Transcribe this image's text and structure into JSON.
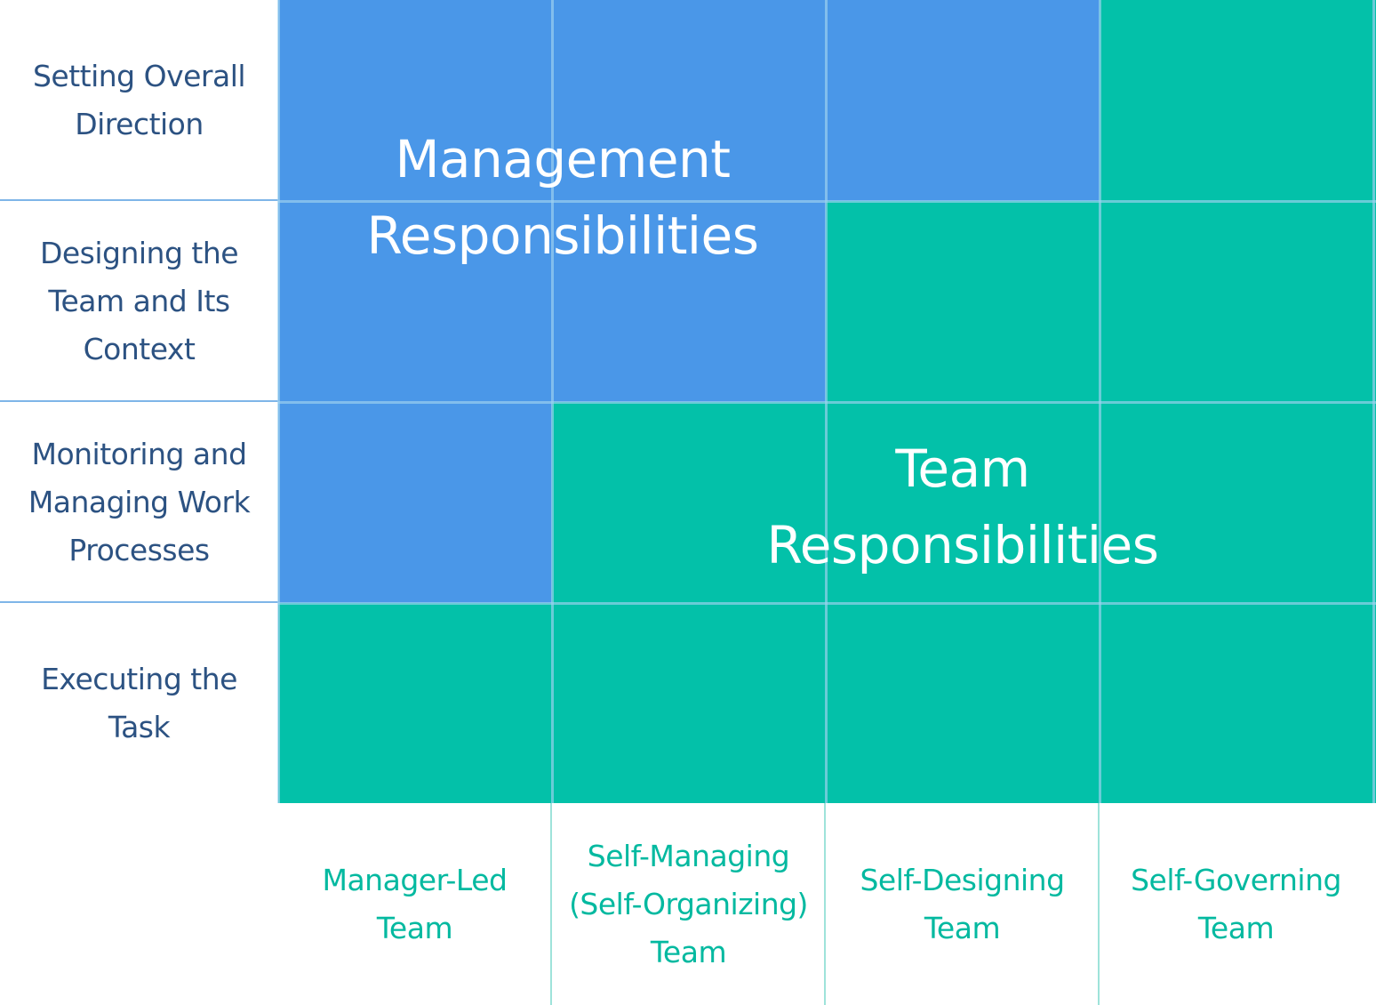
{
  "rows": [
    {
      "label": "Setting Overall Direction"
    },
    {
      "label": "Designing the Team and Its Context"
    },
    {
      "label": "Monitoring and Managing Work Processes"
    },
    {
      "label": "Executing the Task"
    }
  ],
  "columns": [
    {
      "label": "Manager-Led Team"
    },
    {
      "label": "Self-Managing (Self-Organizing) Team"
    },
    {
      "label": "Self-Designing Team"
    },
    {
      "label": "Self-Governing Team"
    }
  ],
  "matrix": [
    [
      "management",
      "management",
      "management",
      "team"
    ],
    [
      "management",
      "management",
      "team",
      "team"
    ],
    [
      "management",
      "team",
      "team",
      "team"
    ],
    [
      "team",
      "team",
      "team",
      "team"
    ]
  ],
  "regions": {
    "management": {
      "label": "Management Responsibilities",
      "color": "#4a97e8"
    },
    "team": {
      "label": "Team Responsibilities",
      "color": "#03c1a9"
    }
  },
  "colors": {
    "row_label_text": "#2c5282",
    "column_label_text": "#03b9a0"
  }
}
